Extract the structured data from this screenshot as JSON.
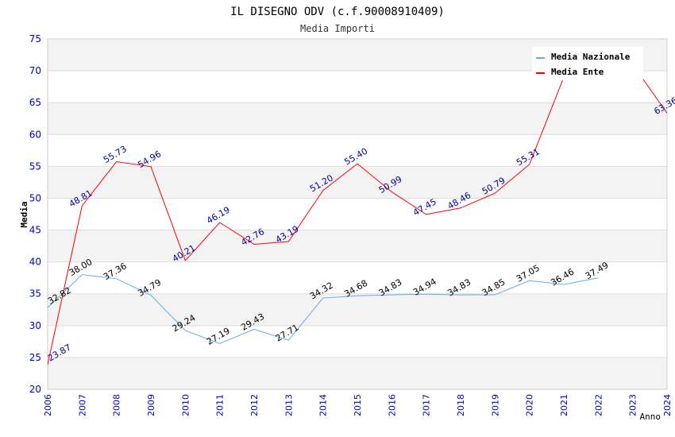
{
  "chart_data": {
    "type": "line",
    "title": "IL DISEGNO ODV (c.f.90008910409)",
    "subtitle": "Media Importi",
    "xlabel": "Anno",
    "ylabel": "Media",
    "ylim": [
      20,
      75
    ],
    "yticks": [
      20,
      25,
      30,
      35,
      40,
      45,
      50,
      55,
      60,
      65,
      70,
      75
    ],
    "x": [
      2006,
      2007,
      2008,
      2009,
      2010,
      2011,
      2012,
      2013,
      2014,
      2015,
      2016,
      2017,
      2018,
      2019,
      2020,
      2021,
      2022,
      2023,
      2024
    ],
    "grid": true,
    "legend_position": "top-right",
    "series": [
      {
        "name": "Media Nazionale",
        "color": "#66aaee",
        "label_color": "#000000",
        "values": [
          32.82,
          38.0,
          37.36,
          34.79,
          29.24,
          27.19,
          29.43,
          27.71,
          34.32,
          34.68,
          34.83,
          34.94,
          34.83,
          34.85,
          37.05,
          36.46,
          37.49,
          null,
          null
        ],
        "labels": [
          "32.82",
          "38.00",
          "37.36",
          "34.79",
          "29.24",
          "27.19",
          "29.43",
          "27.71",
          "34.32",
          "34.68",
          "34.83",
          "34.94",
          "34.83",
          "34.85",
          "37.05",
          "36.46",
          "37.49",
          null,
          null
        ]
      },
      {
        "name": "Media Ente",
        "color": "#ff0000",
        "label_color": "#000099",
        "values": [
          23.87,
          48.81,
          55.73,
          54.96,
          40.21,
          46.19,
          42.76,
          43.19,
          51.2,
          55.4,
          50.99,
          47.45,
          48.46,
          50.79,
          55.31,
          69,
          72,
          71,
          63.36
        ],
        "labels": [
          "23.87",
          "48.81",
          "55.73",
          "54.96",
          "40.21",
          "46.19",
          "42.76",
          "43.19",
          "51.20",
          "55.40",
          "50.99",
          "47.45",
          "48.46",
          "50.79",
          "55.31",
          null,
          null,
          null,
          "63.36"
        ]
      }
    ]
  }
}
